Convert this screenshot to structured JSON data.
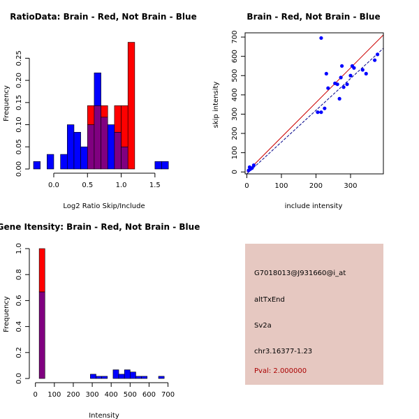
{
  "colors": {
    "red": "#ff0000",
    "blue": "#0000ff",
    "overlap": "#800080",
    "line_red": "#cc0000",
    "line_blue": "#000088",
    "info_bg": "#e6c8c1",
    "pval": "#aa0000"
  },
  "chart_data": [
    {
      "type": "bar",
      "title": "RatioData: Brain - Red, Not Brain - Blue",
      "xlabel": "Log2 Ratio Skip/Include",
      "ylabel": "Frequency",
      "xlim": [
        -0.3,
        1.75
      ],
      "ylim": [
        0,
        0.29
      ],
      "xticks": [
        0.0,
        0.5,
        1.0,
        1.5
      ],
      "xtick_labels": [
        "0.0",
        "0.5",
        "1.0",
        "1.5"
      ],
      "yticks": [
        0.0,
        0.05,
        0.1,
        0.15,
        0.2,
        0.25
      ],
      "ytick_labels": [
        "0.00",
        "0.05",
        "0.10",
        "0.15",
        "0.20",
        "0.25"
      ],
      "bin_edges": [
        -0.3,
        -0.2,
        -0.1,
        0.0,
        0.1,
        0.2,
        0.3,
        0.4,
        0.5,
        0.6,
        0.7,
        0.8,
        0.9,
        1.0,
        1.1,
        1.2,
        1.3,
        1.4,
        1.5,
        1.6,
        1.7
      ],
      "series": [
        {
          "name": "Brain",
          "color": "red",
          "values": [
            0,
            0,
            0,
            0,
            0,
            0,
            0,
            0,
            0.143,
            0.143,
            0.143,
            0,
            0.143,
            0.143,
            0.286,
            0,
            0,
            0,
            0,
            0
          ]
        },
        {
          "name": "Not Brain",
          "color": "blue",
          "values": [
            0.017,
            0,
            0.033,
            0,
            0.033,
            0.1,
            0.083,
            0.05,
            0.1,
            0.217,
            0.117,
            0.1,
            0.083,
            0.05,
            0,
            0,
            0,
            0,
            0.017,
            0.017
          ]
        }
      ]
    },
    {
      "type": "scatter",
      "title": "Brain - Red, Not Brain - Blue",
      "xlabel": "include intensity",
      "ylabel": "skip intensity",
      "xlim": [
        -5,
        395
      ],
      "ylim": [
        -10,
        722
      ],
      "xticks": [
        0,
        100,
        200,
        300
      ],
      "xtick_labels": [
        "0",
        "100",
        "200",
        "300"
      ],
      "yticks": [
        0,
        100,
        200,
        300,
        400,
        500,
        600,
        700
      ],
      "ytick_labels": [
        "0",
        "100",
        "200",
        "300",
        "400",
        "500",
        "600",
        "700"
      ],
      "points": [
        {
          "x": 5,
          "y": 8
        },
        {
          "x": 8,
          "y": 25
        },
        {
          "x": 10,
          "y": 15
        },
        {
          "x": 15,
          "y": 20
        },
        {
          "x": 20,
          "y": 35
        },
        {
          "x": 205,
          "y": 310
        },
        {
          "x": 215,
          "y": 310
        },
        {
          "x": 215,
          "y": 695
        },
        {
          "x": 225,
          "y": 330
        },
        {
          "x": 230,
          "y": 510
        },
        {
          "x": 235,
          "y": 435
        },
        {
          "x": 255,
          "y": 460
        },
        {
          "x": 262,
          "y": 455
        },
        {
          "x": 268,
          "y": 380
        },
        {
          "x": 272,
          "y": 490
        },
        {
          "x": 275,
          "y": 550
        },
        {
          "x": 280,
          "y": 440
        },
        {
          "x": 290,
          "y": 455
        },
        {
          "x": 300,
          "y": 500
        },
        {
          "x": 305,
          "y": 550
        },
        {
          "x": 310,
          "y": 540
        },
        {
          "x": 335,
          "y": 530
        },
        {
          "x": 345,
          "y": 510
        },
        {
          "x": 370,
          "y": 580
        },
        {
          "x": 378,
          "y": 610
        }
      ],
      "lines": [
        {
          "name": "Brain fit",
          "color": "red",
          "intercept": 0,
          "slope": 1.8
        },
        {
          "name": "Not Brain fit",
          "color": "blue",
          "intercept": -10,
          "slope": 1.65
        }
      ]
    },
    {
      "type": "bar",
      "title": "Gene Itensity: Brain - Red, Not Brain - Blue",
      "xlabel": "Intensity",
      "ylabel": "Frequency",
      "xlim": [
        -10,
        720
      ],
      "ylim": [
        0,
        1.0
      ],
      "xticks": [
        0,
        100,
        200,
        300,
        400,
        500,
        600,
        700
      ],
      "xtick_labels": [
        "0",
        "100",
        "200",
        "300",
        "400",
        "500",
        "600",
        "700"
      ],
      "yticks": [
        0.0,
        0.2,
        0.4,
        0.6,
        0.8,
        1.0
      ],
      "ytick_labels": [
        "0.0",
        "0.2",
        "0.4",
        "0.6",
        "0.8",
        "1.0"
      ],
      "bin_edges": [
        20,
        50,
        80,
        110,
        140,
        170,
        200,
        230,
        260,
        290,
        320,
        350,
        380,
        410,
        440,
        470,
        500,
        530,
        560,
        590,
        620,
        650,
        680,
        710
      ],
      "series": [
        {
          "name": "Brain",
          "color": "red",
          "values": [
            1.0,
            0,
            0,
            0,
            0,
            0,
            0,
            0,
            0,
            0,
            0,
            0,
            0,
            0,
            0,
            0,
            0,
            0,
            0,
            0,
            0,
            0,
            0
          ]
        },
        {
          "name": "Not Brain",
          "color": "blue",
          "values": [
            0.667,
            0,
            0,
            0,
            0,
            0,
            0,
            0,
            0,
            0.033,
            0.017,
            0.017,
            0,
            0.067,
            0.033,
            0.067,
            0.05,
            0.017,
            0.017,
            0,
            0,
            0.017,
            0
          ]
        }
      ]
    }
  ],
  "info_panel": {
    "probe": "G7018013@J931660@i_at",
    "event": "altTxEnd",
    "gene": "Sv2a",
    "location": "chr3.16377-1.23",
    "pval": "Pval: 2.000000"
  }
}
